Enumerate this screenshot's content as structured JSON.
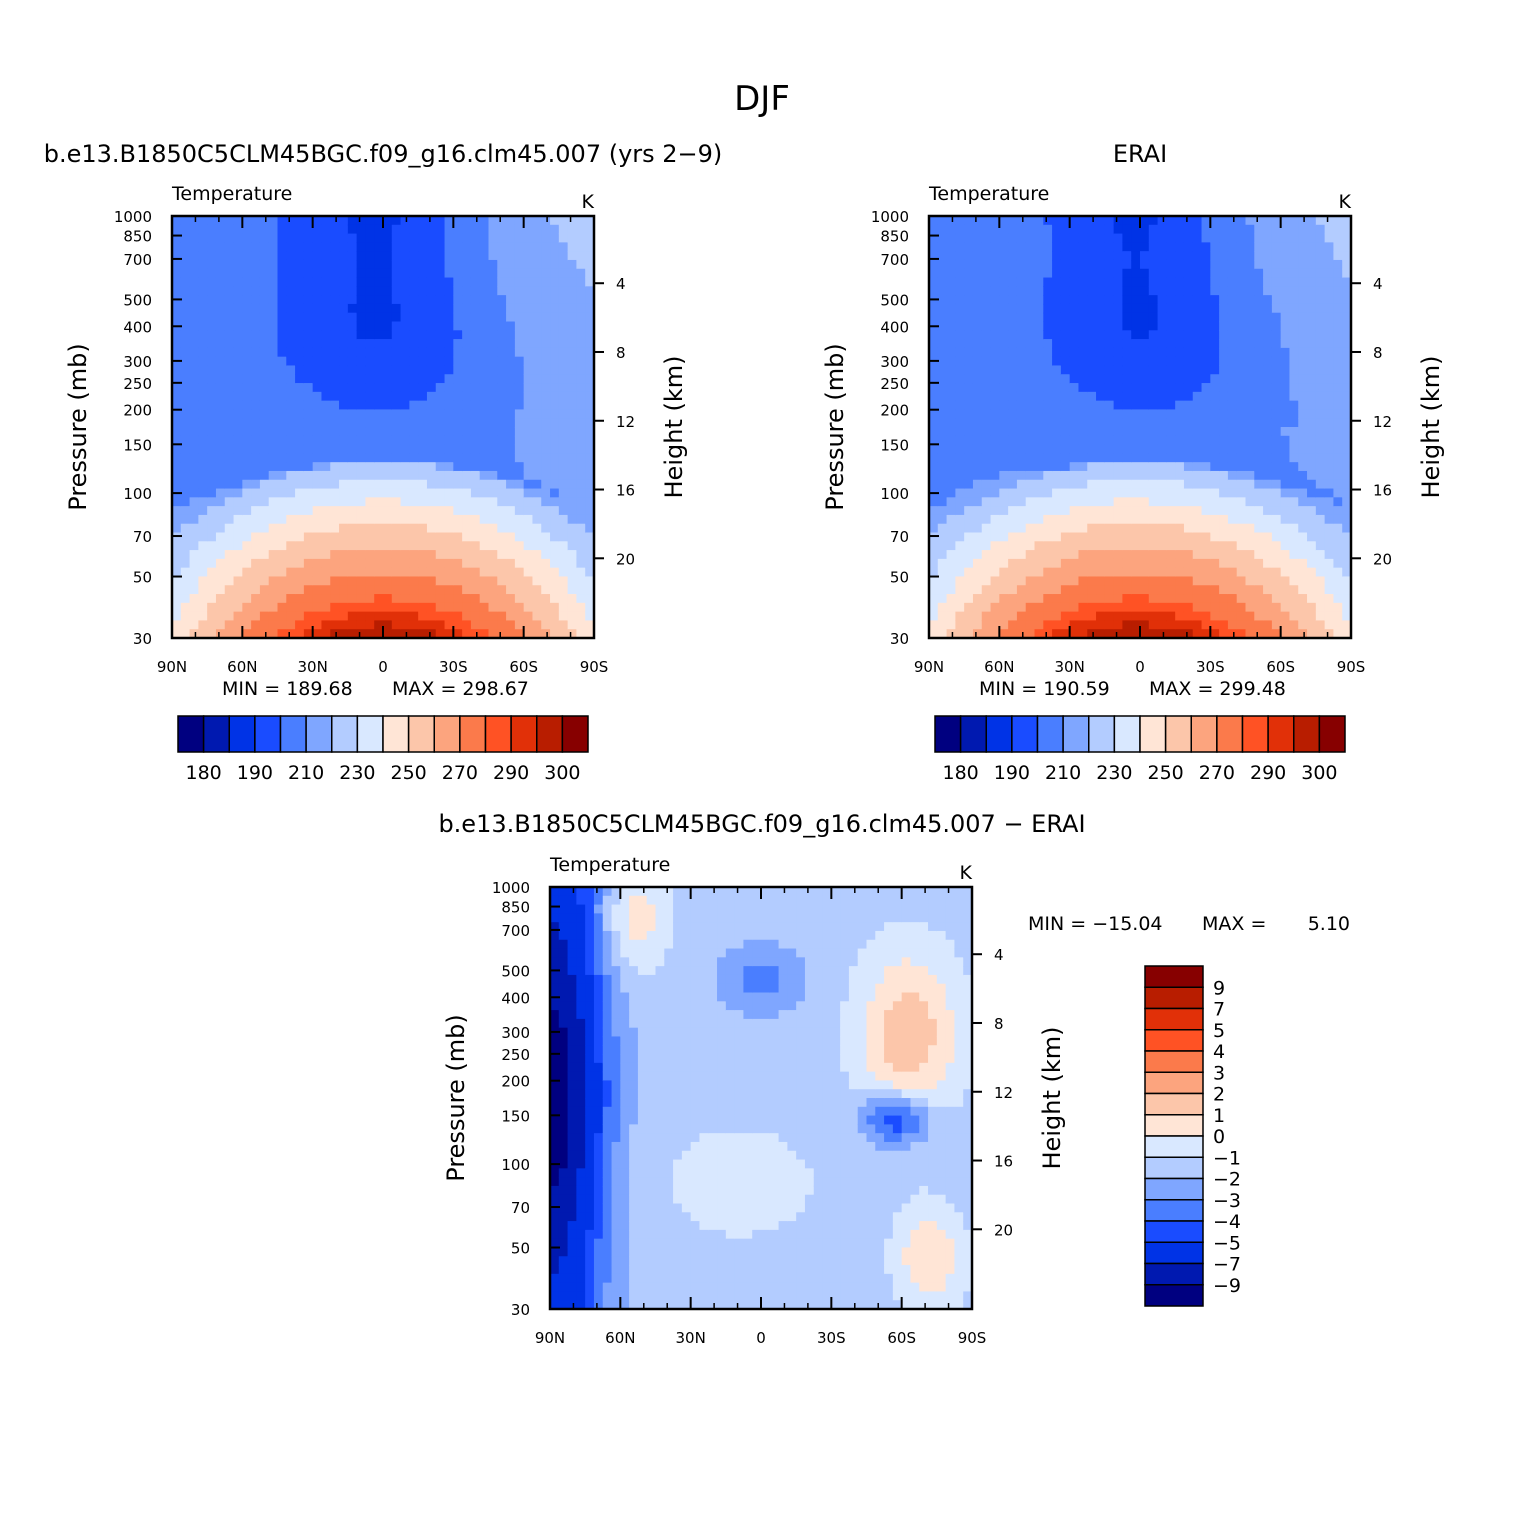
{
  "figure": {
    "title": "DJF",
    "diff_title": "b.e13.B1850C5CLM45BGC.f09_g16.clm45.007 − ERAI"
  },
  "chart_data": [
    {
      "type": "heatmap",
      "title": "b.e13.B1850C5CLM45BGC.f09_g16.clm45.007 (yrs 2−9)",
      "variable": "Temperature",
      "units": "K",
      "ylabel": "Pressure (mb)",
      "y2label": "Height (km)",
      "x_ticks": [
        "90N",
        "60N",
        "30N",
        "0",
        "30S",
        "60S",
        "90S"
      ],
      "y_ticks": [
        "30",
        "50",
        "70",
        "100",
        "150",
        "200",
        "250",
        "300",
        "400",
        "500",
        "700",
        "850",
        "1000"
      ],
      "y2_ticks": [
        "20",
        "16",
        "12",
        "8",
        "4"
      ],
      "min_label": "MIN = 189.68",
      "max_label": "MAX = 298.67",
      "min": 189.68,
      "max": 298.67,
      "colorbar_labels": [
        "180",
        "190",
        "210",
        "230",
        "250",
        "270",
        "290",
        "300"
      ]
    },
    {
      "type": "heatmap",
      "title": "ERAI",
      "variable": "Temperature",
      "units": "K",
      "ylabel": "Pressure (mb)",
      "y2label": "Height (km)",
      "x_ticks": [
        "90N",
        "60N",
        "30N",
        "0",
        "30S",
        "60S",
        "90S"
      ],
      "y_ticks": [
        "30",
        "50",
        "70",
        "100",
        "150",
        "200",
        "250",
        "300",
        "400",
        "500",
        "700",
        "850",
        "1000"
      ],
      "y2_ticks": [
        "20",
        "16",
        "12",
        "8",
        "4"
      ],
      "min_label": "MIN = 190.59",
      "max_label": "MAX = 299.48",
      "min": 190.59,
      "max": 299.48,
      "colorbar_labels": [
        "180",
        "190",
        "210",
        "230",
        "250",
        "270",
        "290",
        "300"
      ]
    },
    {
      "type": "heatmap",
      "title": "b.e13.B1850C5CLM45BGC.f09_g16.clm45.007 − ERAI",
      "variable": "Temperature",
      "units": "K",
      "ylabel": "Pressure (mb)",
      "y2label": "Height (km)",
      "x_ticks": [
        "90N",
        "60N",
        "30N",
        "0",
        "30S",
        "60S",
        "90S"
      ],
      "y_ticks": [
        "30",
        "50",
        "70",
        "100",
        "150",
        "200",
        "250",
        "300",
        "400",
        "500",
        "700",
        "850",
        "1000"
      ],
      "y2_ticks": [
        "20",
        "16",
        "12",
        "8",
        "4"
      ],
      "min_label": "MIN = −15.04",
      "max_label": "MAX =",
      "max_value_label": "5.10",
      "min": -15.04,
      "max": 5.1,
      "colorbar_labels": [
        "9",
        "7",
        "5",
        "4",
        "3",
        "2",
        "1",
        "0",
        "−1",
        "−2",
        "−3",
        "−4",
        "−5",
        "−7",
        "−9"
      ]
    }
  ],
  "colors": {
    "abs_palette": [
      "#000080",
      "#0019b0",
      "#0033e6",
      "#1a4cff",
      "#4a7eff",
      "#7fa6ff",
      "#b3ccff",
      "#d9e8ff",
      "#ffe5d6",
      "#fcc6aa",
      "#fca47e",
      "#fb7a4b",
      "#ff5224",
      "#e13008",
      "#b81d00",
      "#870000"
    ],
    "diff_palette": [
      "#000080",
      "#0019b0",
      "#0033e6",
      "#1a4cff",
      "#4a7eff",
      "#7fa6ff",
      "#b3ccff",
      "#d9e8ff",
      "#ffe5d6",
      "#fcc6aa",
      "#fca47e",
      "#fb7a4b",
      "#ff5224",
      "#e13008",
      "#b81d00",
      "#870000"
    ]
  }
}
